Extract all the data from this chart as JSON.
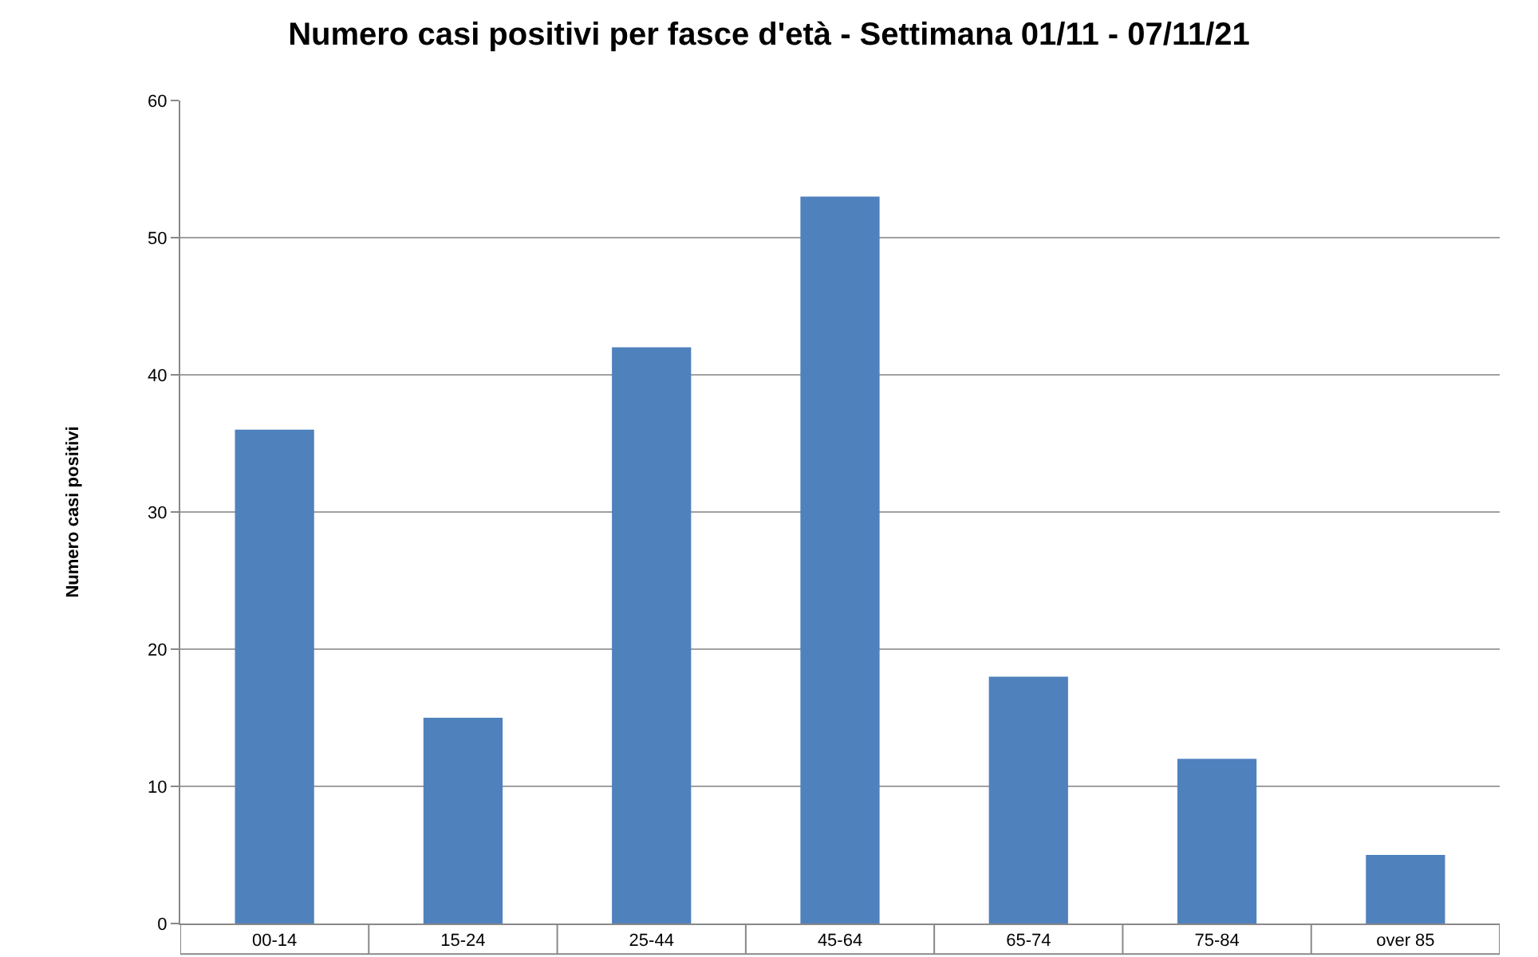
{
  "chart_data": {
    "type": "bar",
    "title": "Numero casi positivi per fasce d'età - Settimana 01/11 - 07/11/21",
    "ylabel": "Numero casi positivi",
    "categories": [
      "00-14",
      "15-24",
      "25-44",
      "45-64",
      "65-74",
      "75-84",
      "over 85"
    ],
    "values": [
      36,
      15,
      42,
      53,
      18,
      12,
      5
    ],
    "color": "#4f81bd",
    "ylim": [
      0,
      60
    ],
    "yticks": [
      0,
      10,
      20,
      30,
      40,
      50,
      60
    ],
    "grid": "y",
    "legend": false
  }
}
